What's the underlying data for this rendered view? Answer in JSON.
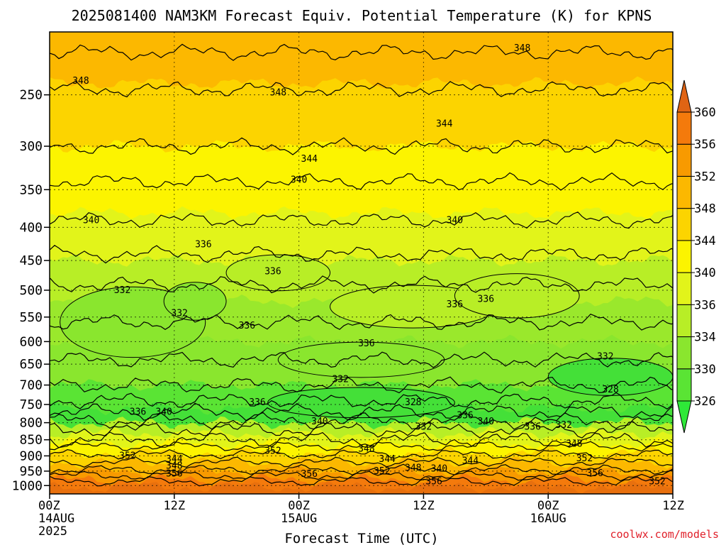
{
  "title": "2025081400 NAM3KM Forecast Equiv. Potential Temperature (K) for KPNS",
  "credit": "coolwx.com/models",
  "chart_data": {
    "type": "heatmap",
    "title": "2025081400 NAM3KM Forecast Equiv. Potential Temperature (K) for KPNS",
    "xlabel": "Forecast Time (UTC)",
    "ylabel": "",
    "x_range_hours": [
      0,
      60
    ],
    "y_range_hpa": [
      200,
      1030
    ],
    "y_scale": "log",
    "grid": true,
    "x_ticks": [
      {
        "hour": 0,
        "label": "00Z",
        "date": "14AUG",
        "year": "2025"
      },
      {
        "hour": 12,
        "label": "12Z",
        "date": "",
        "year": ""
      },
      {
        "hour": 24,
        "label": "00Z",
        "date": "15AUG",
        "year": ""
      },
      {
        "hour": 36,
        "label": "12Z",
        "date": "",
        "year": ""
      },
      {
        "hour": 48,
        "label": "00Z",
        "date": "16AUG",
        "year": ""
      },
      {
        "hour": 60,
        "label": "12Z",
        "date": "",
        "year": ""
      }
    ],
    "y_ticks": [
      250,
      300,
      350,
      400,
      450,
      500,
      550,
      600,
      650,
      700,
      750,
      800,
      850,
      900,
      950,
      1000
    ],
    "colorbar": {
      "levels": [
        326,
        330,
        334,
        336,
        340,
        344,
        348,
        352,
        356,
        360
      ],
      "colors": [
        "#2ee838",
        "#5ae434",
        "#8ae62e",
        "#b8ee26",
        "#e2f41a",
        "#fcf400",
        "#fcd400",
        "#fcb800",
        "#f89a00",
        "#f47a0c",
        "#e06414"
      ],
      "placement": "right"
    },
    "bands": [
      {
        "p": 200,
        "value": 350,
        "color": "#fcb800"
      },
      {
        "p": 240,
        "value": 348,
        "color": "#fcd400"
      },
      {
        "p": 300,
        "value": 344,
        "color": "#fcf400"
      },
      {
        "p": 380,
        "value": 340,
        "color": "#e2f41a"
      },
      {
        "p": 450,
        "value": 337,
        "color": "#b8ee26"
      },
      {
        "p": 520,
        "value": 335,
        "color": "#9ae82c"
      },
      {
        "p": 600,
        "value": 334,
        "color": "#8ae62e"
      },
      {
        "p": 700,
        "value": 330,
        "color": "#5ae434"
      },
      {
        "p": 760,
        "value": 328,
        "color": "#44e038"
      },
      {
        "p": 800,
        "value": 336,
        "color": "#b8ee26"
      },
      {
        "p": 830,
        "value": 340,
        "color": "#e2f41a"
      },
      {
        "p": 860,
        "value": 344,
        "color": "#fcf400"
      },
      {
        "p": 890,
        "value": 348,
        "color": "#fcd400"
      },
      {
        "p": 920,
        "value": 352,
        "color": "#fcb800"
      },
      {
        "p": 950,
        "value": 354,
        "color": "#f89a00"
      },
      {
        "p": 980,
        "value": 356,
        "color": "#f47a0c"
      },
      {
        "p": 1005,
        "value": 357,
        "color": "#e8700e"
      },
      {
        "p": 1030,
        "value": 358,
        "color": "#a05a2c"
      }
    ],
    "contour_levels": [
      {
        "p": 215,
        "value": 350
      },
      {
        "p": 245,
        "value": 348
      },
      {
        "p": 300,
        "value": 344
      },
      {
        "p": 340,
        "value": 342
      },
      {
        "p": 390,
        "value": 340
      },
      {
        "p": 440,
        "value": 338
      },
      {
        "p": 490,
        "value": 336
      },
      {
        "p": 560,
        "value": 334
      },
      {
        "p": 640,
        "value": 332
      },
      {
        "p": 700,
        "value": 330
      },
      {
        "p": 740,
        "value": 328
      },
      {
        "p": 770,
        "value": 330
      },
      {
        "p": 795,
        "value": 336
      },
      {
        "p": 820,
        "value": 340
      },
      {
        "p": 850,
        "value": 344
      },
      {
        "p": 870,
        "value": 348
      },
      {
        "p": 895,
        "value": 352
      },
      {
        "p": 920,
        "value": 352
      },
      {
        "p": 945,
        "value": 354
      },
      {
        "p": 965,
        "value": 356
      },
      {
        "p": 985,
        "value": 356
      }
    ],
    "blobs": [
      {
        "hour": 29,
        "p": 760,
        "rx_h": 6,
        "ry_hpa": 18,
        "color": "#2ee860"
      },
      {
        "hour": 30,
        "p": 745,
        "rx_h": 9,
        "ry_hpa": 40,
        "color": "#44e038"
      },
      {
        "hour": 54,
        "p": 680,
        "rx_h": 6,
        "ry_hpa": 45,
        "color": "#44e038"
      },
      {
        "hour": 8,
        "p": 560,
        "rx_h": 7,
        "ry_hpa": 70,
        "color": "#8ae62e"
      },
      {
        "hour": 14,
        "p": 520,
        "rx_h": 3,
        "ry_hpa": 35,
        "color": "#8ae62e"
      },
      {
        "hour": 35,
        "p": 530,
        "rx_h": 8,
        "ry_hpa": 40,
        "color": "#b8ee26"
      },
      {
        "hour": 45,
        "p": 510,
        "rx_h": 6,
        "ry_hpa": 40,
        "color": "#b8ee26"
      },
      {
        "hour": 22,
        "p": 470,
        "rx_h": 5,
        "ry_hpa": 30,
        "color": "#b8ee26"
      },
      {
        "hour": 30,
        "p": 640,
        "rx_h": 8,
        "ry_hpa": 40,
        "color": "#8ae62e"
      }
    ],
    "labels": [
      {
        "hour": 45.5,
        "p": 212,
        "text": "348"
      },
      {
        "hour": 3.0,
        "p": 238,
        "text": "348"
      },
      {
        "hour": 22.0,
        "p": 248,
        "text": "348"
      },
      {
        "hour": 38.0,
        "p": 277,
        "text": "344"
      },
      {
        "hour": 25.0,
        "p": 314,
        "text": "344"
      },
      {
        "hour": 24.0,
        "p": 338,
        "text": "340"
      },
      {
        "hour": 39.0,
        "p": 390,
        "text": "340"
      },
      {
        "hour": 4.0,
        "p": 390,
        "text": "340"
      },
      {
        "hour": 14.8,
        "p": 425,
        "text": "336"
      },
      {
        "hour": 21.5,
        "p": 468,
        "text": "336"
      },
      {
        "hour": 7.0,
        "p": 500,
        "text": "332"
      },
      {
        "hour": 12.5,
        "p": 543,
        "text": "332"
      },
      {
        "hour": 19.0,
        "p": 567,
        "text": "336"
      },
      {
        "hour": 39.0,
        "p": 526,
        "text": "336"
      },
      {
        "hour": 42.0,
        "p": 516,
        "text": "336"
      },
      {
        "hour": 30.5,
        "p": 604,
        "text": "336"
      },
      {
        "hour": 28.0,
        "p": 686,
        "text": "332"
      },
      {
        "hour": 53.5,
        "p": 633,
        "text": "332"
      },
      {
        "hour": 54.0,
        "p": 711,
        "text": "328"
      },
      {
        "hour": 20.0,
        "p": 744,
        "text": "336"
      },
      {
        "hour": 35.0,
        "p": 744,
        "text": "328"
      },
      {
        "hour": 8.5,
        "p": 770,
        "text": "336"
      },
      {
        "hour": 11.0,
        "p": 770,
        "text": "340"
      },
      {
        "hour": 26.0,
        "p": 797,
        "text": "340"
      },
      {
        "hour": 36.0,
        "p": 812,
        "text": "332"
      },
      {
        "hour": 40.0,
        "p": 780,
        "text": "336"
      },
      {
        "hour": 42.0,
        "p": 797,
        "text": "340"
      },
      {
        "hour": 46.5,
        "p": 812,
        "text": "336"
      },
      {
        "hour": 49.5,
        "p": 807,
        "text": "332"
      },
      {
        "hour": 50.5,
        "p": 863,
        "text": "348"
      },
      {
        "hour": 30.5,
        "p": 878,
        "text": "348"
      },
      {
        "hour": 21.5,
        "p": 884,
        "text": "352"
      },
      {
        "hour": 7.5,
        "p": 900,
        "text": "352"
      },
      {
        "hour": 12.0,
        "p": 910,
        "text": "344"
      },
      {
        "hour": 12.0,
        "p": 933,
        "text": "348"
      },
      {
        "hour": 12.0,
        "p": 959,
        "text": "356"
      },
      {
        "hour": 32.5,
        "p": 911,
        "text": "344"
      },
      {
        "hour": 40.5,
        "p": 916,
        "text": "344"
      },
      {
        "hour": 51.5,
        "p": 908,
        "text": "352"
      },
      {
        "hour": 25.0,
        "p": 960,
        "text": "356"
      },
      {
        "hour": 32.0,
        "p": 950,
        "text": "352"
      },
      {
        "hour": 35.0,
        "p": 940,
        "text": "348"
      },
      {
        "hour": 37.5,
        "p": 942,
        "text": "340"
      },
      {
        "hour": 37.0,
        "p": 985,
        "text": "356"
      },
      {
        "hour": 52.5,
        "p": 958,
        "text": "356"
      },
      {
        "hour": 58.5,
        "p": 985,
        "text": "352"
      }
    ]
  }
}
